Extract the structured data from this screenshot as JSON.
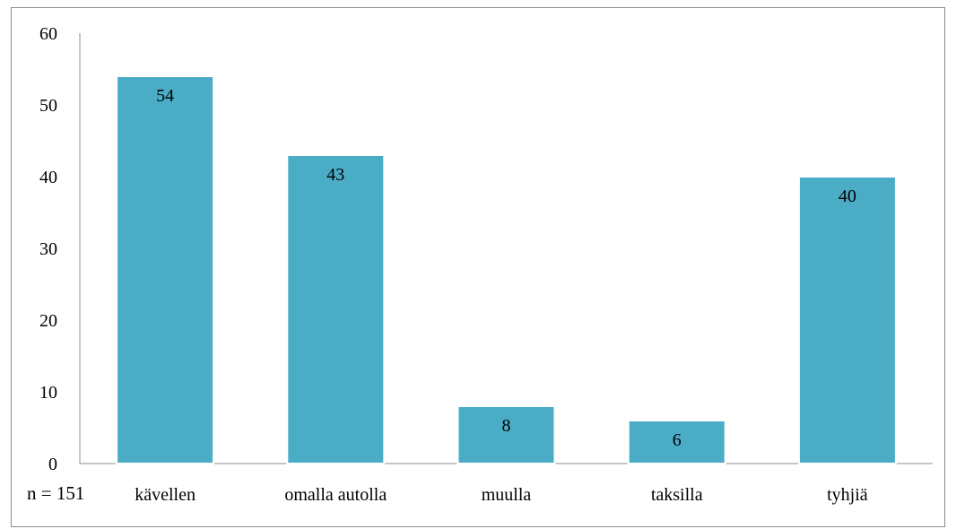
{
  "chart_data": {
    "type": "bar",
    "categories": [
      "kävellen",
      "omalla autolla",
      "muulla",
      "taksilla",
      "tyhjiä"
    ],
    "values": [
      54,
      43,
      8,
      6,
      40
    ],
    "ylim": [
      0,
      60
    ],
    "yticks": [
      0,
      10,
      20,
      30,
      40,
      50,
      60
    ],
    "grid": false,
    "data_labels": true,
    "note": "n = 151",
    "bar_color": "#4BACC6",
    "bar_edge_color": "#ffffff"
  }
}
